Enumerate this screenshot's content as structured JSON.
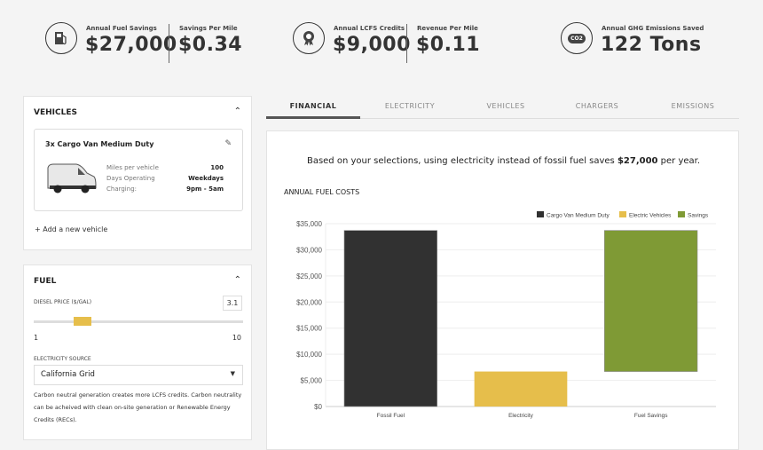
{
  "stats": [
    {
      "icon": "fuel-pump-icon",
      "label": "Annual Fuel Savings",
      "value": "$27,000"
    },
    {
      "label": "Savings Per Mile",
      "value": "$0.34"
    },
    {
      "icon": "award-icon",
      "label": "Annual LCFS Credits",
      "value": "$9,000"
    },
    {
      "label": "Revenue Per Mile",
      "value": "$0.11"
    },
    {
      "icon": "co2-cloud-icon",
      "icon_text": "CO2",
      "label": "Annual GHG Emissions Saved",
      "value": "122 Tons"
    }
  ],
  "vehicles": {
    "title": "VEHICLES",
    "card": {
      "name": "3x Cargo Van Medium Duty",
      "rows": [
        {
          "label": "Miles per vehicle",
          "value": "100"
        },
        {
          "label": "Days Operating",
          "value": "Weekdays"
        },
        {
          "label": "Charging:",
          "value": "9pm - 5am"
        }
      ]
    },
    "add_label": "+ Add a new vehicle"
  },
  "fuel": {
    "title": "FUEL",
    "diesel_label": "DIESEL PRICE ($/GAL)",
    "diesel_value": "3.1",
    "slider": {
      "min": "1",
      "max": "10",
      "value": 3.1
    },
    "source_label": "ELECTRICITY SOURCE",
    "source_value": "California Grid",
    "note": "Carbon neutral generation creates more LCFS credits. Carbon neutrality can be acheived with clean on-site generation or Renewable Energy Credits (RECs)."
  },
  "tabs": [
    {
      "label": "FINANCIAL",
      "active": true
    },
    {
      "label": "ELECTRICITY"
    },
    {
      "label": "VEHICLES"
    },
    {
      "label": "CHARGERS"
    },
    {
      "label": "EMISSIONS"
    }
  ],
  "summary": {
    "prefix": "Based on your selections, using electricity instead of fossil fuel saves ",
    "amount": "$27,000",
    "suffix": " per year."
  },
  "chart_data": {
    "type": "bar",
    "title": "ANNUAL FUEL COSTS",
    "categories": [
      "Fossil Fuel",
      "Electricity",
      "Fuel Savings"
    ],
    "series": [
      {
        "name": "Cargo Van Medium Duty",
        "color": "#313131",
        "bars": [
          {
            "category": "Fossil Fuel",
            "from": 0,
            "to": 33700
          }
        ]
      },
      {
        "name": "Electric Vehicles",
        "color": "#e6be4b",
        "bars": [
          {
            "category": "Electricity",
            "from": 0,
            "to": 6700
          }
        ]
      },
      {
        "name": "Savings",
        "color": "#7f9a35",
        "bars": [
          {
            "category": "Fuel Savings",
            "from": 6700,
            "to": 33700
          }
        ]
      }
    ],
    "yticks": [
      "$0",
      "$5,000",
      "$10,000",
      "$15,000",
      "$20,000",
      "$25,000",
      "$30,000",
      "$35,000"
    ],
    "ylim": [
      0,
      35000
    ],
    "grid": true,
    "legend": "top-right"
  }
}
